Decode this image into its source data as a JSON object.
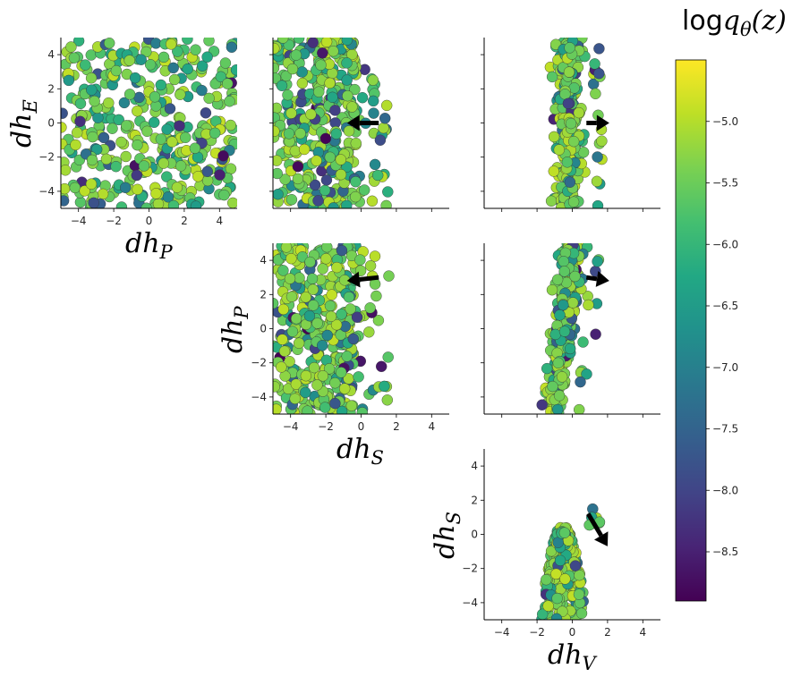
{
  "colorbar": {
    "title": "log q_θ(z)",
    "title_main": "log",
    "title_q": "q",
    "title_sub": "θ",
    "title_arg": "(z)",
    "ticks": [
      -5.0,
      -5.5,
      -6.0,
      -6.5,
      -7.0,
      -7.5,
      -8.0,
      -8.5
    ],
    "tick_labels": [
      "−5.0",
      "−5.5",
      "−6.0",
      "−6.5",
      "−7.0",
      "−7.5",
      "−8.0",
      "−8.5"
    ],
    "range": [
      -8.9,
      -4.5
    ],
    "colormap": "viridis"
  },
  "axis_labels": {
    "dh_E": {
      "base": "dh",
      "sub": "E"
    },
    "dh_P": {
      "base": "dh",
      "sub": "P"
    },
    "dh_S": {
      "base": "dh",
      "sub": "S"
    },
    "dh_V": {
      "base": "dh",
      "sub": "V"
    }
  },
  "tick_values": [
    -4,
    -2,
    0,
    2,
    4
  ],
  "tick_labels": [
    "−4",
    "−2",
    "0",
    "2",
    "4"
  ],
  "chart_data": [
    {
      "type": "scatter",
      "panel": "row1-col1",
      "x_label": "dh_P",
      "y_label": "dh_E",
      "xlim": [
        -5,
        5
      ],
      "ylim": [
        -5,
        5
      ],
      "point_count": 400,
      "pattern": "uniform random over full square",
      "arrow": null
    },
    {
      "type": "scatter",
      "panel": "row1-col2",
      "x_label": "",
      "y_label": "",
      "xlim": [
        -5,
        5
      ],
      "ylim": [
        -5,
        5
      ],
      "point_count": 380,
      "pattern": "dense for x < -0.3, sparse scatter to x ≈ 1.5",
      "arrow": {
        "from": [
          1.0,
          0.0
        ],
        "to": [
          -0.8,
          0.0
        ]
      }
    },
    {
      "type": "scatter",
      "panel": "row1-col3",
      "x_label": "",
      "y_label": "",
      "xlim": [
        -5,
        5
      ],
      "ylim": [
        -5,
        5
      ],
      "point_count": 300,
      "pattern": "narrow vertical band x ≈ -1.0 to 0.7, few outliers at x ≈ 1.5",
      "arrow": {
        "from": [
          0.8,
          0.0
        ],
        "to": [
          2.1,
          0.0
        ]
      }
    },
    {
      "type": "scatter",
      "panel": "row2-col2",
      "x_label": "dh_S",
      "y_label": "dh_P",
      "xlim": [
        -5,
        5
      ],
      "ylim": [
        -5,
        5
      ],
      "point_count": 380,
      "pattern": "dense for x < -0.3, sparse scatter to x ≈ 1.5",
      "arrow": {
        "from": [
          1.0,
          3.0
        ],
        "to": [
          -0.8,
          2.8
        ]
      }
    },
    {
      "type": "scatter",
      "panel": "row2-col3",
      "x_label": "",
      "y_label": "",
      "xlim": [
        -5,
        5
      ],
      "ylim": [
        -5,
        5
      ],
      "point_count": 300,
      "pattern": "tilted band from (-1.5,-4.5) to (0.5,4.5)",
      "arrow": {
        "from": [
          0.8,
          3.0
        ],
        "to": [
          2.1,
          2.8
        ]
      }
    },
    {
      "type": "scatter",
      "panel": "row3-col3",
      "x_label": "dh_V",
      "y_label": "dh_S",
      "xlim": [
        -5,
        5
      ],
      "ylim": [
        -5,
        5
      ],
      "point_count": 260,
      "pattern": "bell-shaped blob, x ≈ -1.8 to 0.8, y ≈ -5 to 0.5, outliers to (1.6,1.5)",
      "arrow": {
        "from": [
          0.9,
          1.2
        ],
        "to": [
          2.0,
          -0.7
        ]
      }
    }
  ]
}
